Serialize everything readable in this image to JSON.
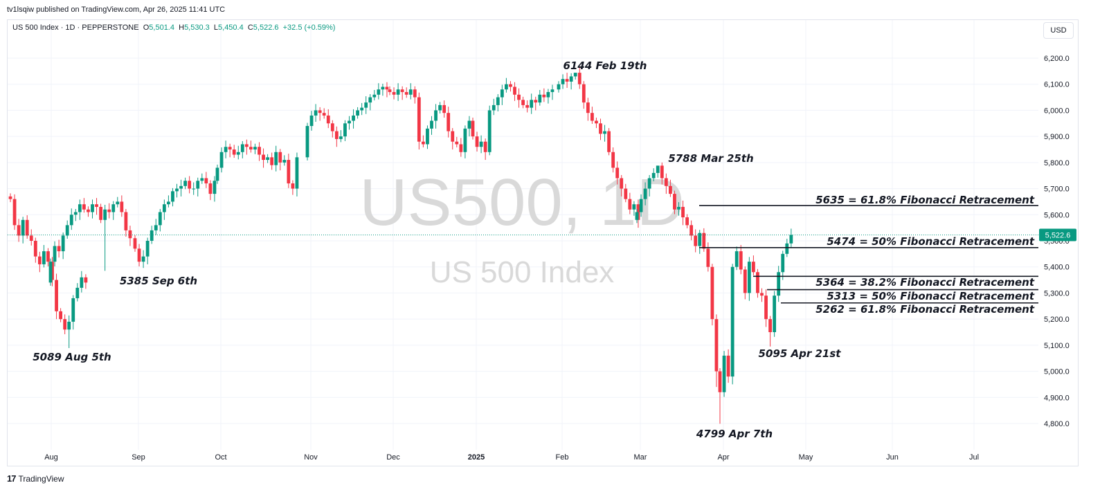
{
  "header": {
    "published": "tv1lsqiw published on TradingView.com, Apr 26, 2025 11:41 UTC"
  },
  "legend": {
    "symbol": "US 500 Index · 1D · PEPPERSTONE",
    "o_label": "O",
    "o_value": "5,501.4",
    "h_label": "H",
    "h_value": "5,530.3",
    "l_label": "L",
    "l_value": "5,450.4",
    "c_label": "C",
    "c_value": "5,522.6",
    "change": "+32.5 (+0.59%)"
  },
  "currency_button": "USD",
  "watermark": {
    "line1": "US500, 1D",
    "line2": "US 500 Index"
  },
  "footer": {
    "logo": "17",
    "brand": "TradingView"
  },
  "colors": {
    "up": "#089981",
    "down": "#f23645",
    "price_line": "#089981",
    "grid": "#f0f3fa",
    "watermark": "#d9d9d9"
  },
  "chart_data": {
    "type": "candlestick",
    "y_axis": {
      "min": 4760,
      "max": 6240,
      "ticks": [
        6200,
        6100,
        6000,
        5900,
        5800,
        5700,
        5600,
        5500,
        5400,
        5300,
        5200,
        5100,
        5000,
        4900,
        4800
      ],
      "tick_labels": [
        "6,200.0",
        "6,100.0",
        "6,000.0",
        "5,900.0",
        "5,800.0",
        "5,700.0",
        "5,600.0",
        "5,500.0",
        "5,400.0",
        "5,300.0",
        "5,200.0",
        "5,100.0",
        "5,000.0",
        "4,900.0",
        "4,800.0"
      ]
    },
    "x_axis": {
      "labels": [
        "Aug",
        "Sep",
        "Oct",
        "Nov",
        "Dec",
        "2025",
        "Feb",
        "Mar",
        "Apr",
        "May",
        "Jun",
        "Jul"
      ]
    },
    "last_price": {
      "value": 5522.6,
      "label": "5,522.6"
    },
    "series": [
      {
        "m": "Jul",
        "c": [
          5660,
          5560,
          5520,
          5580,
          5520,
          5500,
          5440,
          5410,
          5460,
          5420,
          5350,
          5230,
          5200,
          5160,
          5190,
          5280,
          5320,
          5360,
          5340
        ]
      },
      {
        "m": "Aug",
        "c": [
          5420,
          5480,
          5460,
          5520,
          5560,
          5600,
          5610,
          5640,
          5620,
          5610,
          5640,
          5630,
          5580,
          5620,
          5610,
          5640,
          5650,
          5610,
          5540,
          5510
        ]
      },
      {
        "m": "Sep",
        "c": [
          5470,
          5420,
          5440,
          5500,
          5540,
          5560,
          5610,
          5640,
          5650,
          5690,
          5700,
          5710,
          5730,
          5700,
          5700,
          5730,
          5740,
          5720,
          5680,
          5730
        ]
      },
      {
        "m": "Oct",
        "c": [
          5780,
          5840,
          5860,
          5850,
          5830,
          5840,
          5870,
          5860,
          5850,
          5860,
          5830,
          5810,
          5820,
          5790,
          5840,
          5800,
          5810,
          5720,
          5700,
          5820
        ]
      },
      {
        "m": "Nov",
        "c": [
          5940,
          5980,
          6000,
          5990,
          5980,
          5950,
          5920,
          5890,
          5900,
          5950,
          5960,
          5980,
          6000,
          6010,
          6030,
          6050,
          6060,
          6080,
          6090,
          6080
        ]
      },
      {
        "m": "Dec",
        "c": [
          6070,
          6060,
          6080,
          6070,
          6060,
          6080,
          6050,
          5880,
          5870,
          5930,
          5960,
          6000,
          6020,
          5990,
          5920,
          5880,
          5870,
          5840,
          5930,
          5960
        ]
      },
      {
        "m": "Jan",
        "c": [
          5900,
          5860,
          5880,
          5840,
          6000,
          6020,
          6050,
          6080,
          6100,
          6090,
          6060,
          6040,
          6020,
          6010,
          6040,
          6030,
          6060,
          6050,
          6070,
          6080
        ]
      },
      {
        "m": "Feb",
        "c": [
          6100,
          6120,
          6110,
          6130,
          6144,
          6100,
          6030,
          5990,
          5960,
          5950,
          5910,
          5920,
          5840,
          5780,
          5740,
          5700,
          5660,
          5620,
          5640,
          5580
        ]
      },
      {
        "m": "Mar",
        "c": [
          5610,
          5660,
          5700,
          5740,
          5760,
          5788,
          5740,
          5710,
          5680,
          5620,
          5630,
          5590,
          5560,
          5520,
          5480,
          5530,
          5470,
          5400,
          5200,
          5000
        ]
      },
      {
        "m": "Apr",
        "c": [
          4920,
          5060,
          4980,
          5400,
          5460,
          5390,
          5300,
          5420,
          5380,
          5300,
          5290,
          5200,
          5150,
          5290,
          5380,
          5450,
          5490,
          5522.6
        ]
      }
    ],
    "annotations": [
      {
        "text": "5089 Aug 5th",
        "value": 5089
      },
      {
        "text": "5385 Sep 6th",
        "value": 5385
      },
      {
        "text": "6144 Feb 19th",
        "value": 6144
      },
      {
        "text": "5788 Mar 25th",
        "value": 5788
      },
      {
        "text": "4799 Apr 7th",
        "value": 4799
      },
      {
        "text": "5095 Apr 21st",
        "value": 5095
      }
    ],
    "fib_levels": [
      {
        "value": 5635,
        "text": "5635 = 61.8% Fibonacci Retracement"
      },
      {
        "value": 5474,
        "text": "5474 = 50% Fibonacci Retracement"
      },
      {
        "value": 5364,
        "text": "5364 = 38.2% Fibonacci Retracement"
      },
      {
        "value": 5313,
        "text": "5313 = 50% Fibonacci Retracement"
      },
      {
        "value": 5262,
        "text": "5262 = 61.8% Fibonacci Retracement"
      }
    ]
  }
}
